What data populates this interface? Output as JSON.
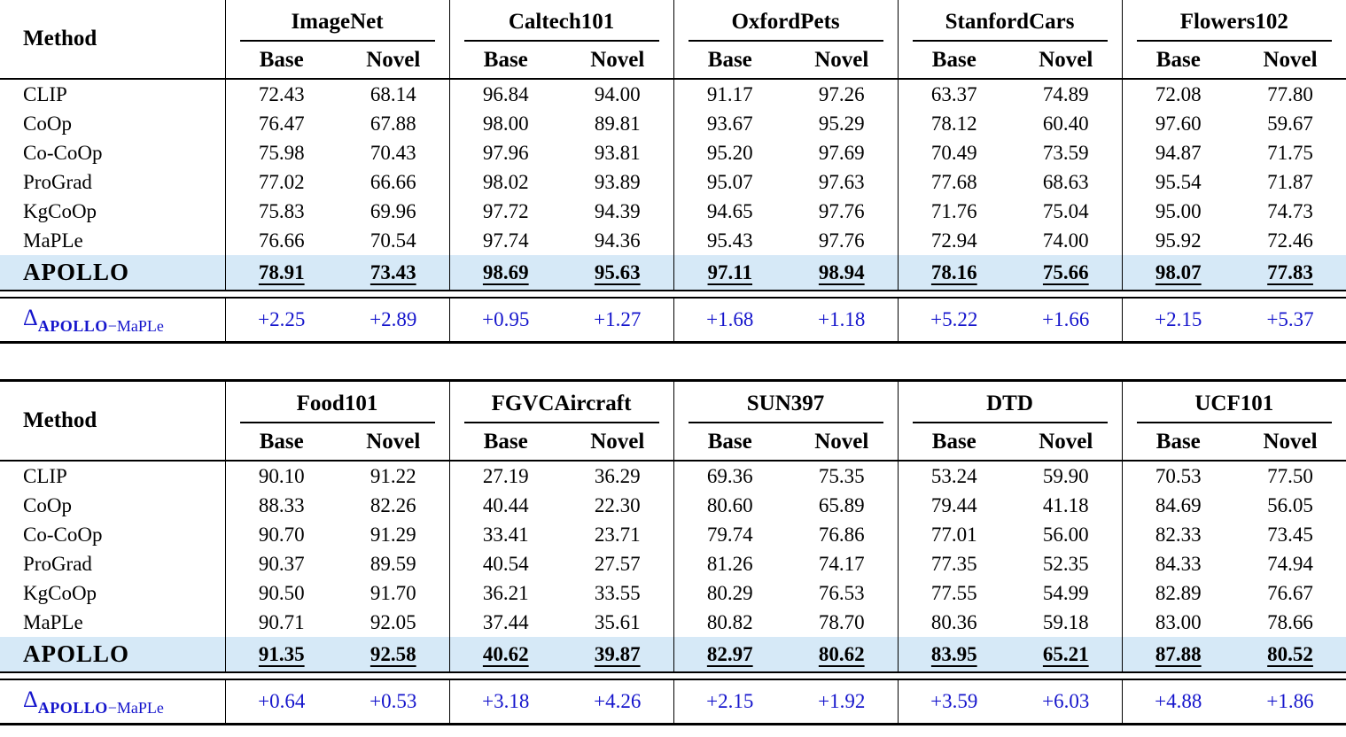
{
  "colors": {
    "delta_blue": "#1515cc",
    "highlight_row_bg": "#d6e9f7",
    "rule_black": "#000000"
  },
  "tables": [
    {
      "method_header": "Method",
      "col_headers": [
        "Base",
        "Novel"
      ],
      "datasets": [
        "ImageNet",
        "Caltech101",
        "OxfordPets",
        "StanfordCars",
        "Flowers102"
      ],
      "top_rule": false,
      "rows": [
        {
          "method": "CLIP",
          "values": [
            [
              "72.43",
              "68.14"
            ],
            [
              "96.84",
              "94.00"
            ],
            [
              "91.17",
              "97.26"
            ],
            [
              "63.37",
              "74.89"
            ],
            [
              "72.08",
              "77.80"
            ]
          ]
        },
        {
          "method": "CoOp",
          "values": [
            [
              "76.47",
              "67.88"
            ],
            [
              "98.00",
              "89.81"
            ],
            [
              "93.67",
              "95.29"
            ],
            [
              "78.12",
              "60.40"
            ],
            [
              "97.60",
              "59.67"
            ]
          ]
        },
        {
          "method": "Co-CoOp",
          "values": [
            [
              "75.98",
              "70.43"
            ],
            [
              "97.96",
              "93.81"
            ],
            [
              "95.20",
              "97.69"
            ],
            [
              "70.49",
              "73.59"
            ],
            [
              "94.87",
              "71.75"
            ]
          ]
        },
        {
          "method": "ProGrad",
          "values": [
            [
              "77.02",
              "66.66"
            ],
            [
              "98.02",
              "93.89"
            ],
            [
              "95.07",
              "97.63"
            ],
            [
              "77.68",
              "68.63"
            ],
            [
              "95.54",
              "71.87"
            ]
          ]
        },
        {
          "method": "KgCoOp",
          "values": [
            [
              "75.83",
              "69.96"
            ],
            [
              "97.72",
              "94.39"
            ],
            [
              "94.65",
              "97.76"
            ],
            [
              "71.76",
              "75.04"
            ],
            [
              "95.00",
              "74.73"
            ]
          ]
        },
        {
          "method": "MaPLe",
          "values": [
            [
              "76.66",
              "70.54"
            ],
            [
              "97.74",
              "94.36"
            ],
            [
              "95.43",
              "97.76"
            ],
            [
              "72.94",
              "74.00"
            ],
            [
              "95.92",
              "72.46"
            ]
          ]
        },
        {
          "method": "APOLLO",
          "highlight": true,
          "values": [
            [
              "78.91",
              "73.43"
            ],
            [
              "98.69",
              "95.63"
            ],
            [
              "97.11",
              "98.94"
            ],
            [
              "78.16",
              "75.66"
            ],
            [
              "98.07",
              "77.83"
            ]
          ]
        }
      ],
      "delta_row": {
        "symbol": "Δ",
        "sub_bold": "APOLLO",
        "sub_rest": "−MaPLe",
        "values": [
          [
            "+2.25",
            "+2.89"
          ],
          [
            "+0.95",
            "+1.27"
          ],
          [
            "+1.68",
            "+1.18"
          ],
          [
            "+5.22",
            "+1.66"
          ],
          [
            "+2.15",
            "+5.37"
          ]
        ]
      }
    },
    {
      "method_header": "Method",
      "col_headers": [
        "Base",
        "Novel"
      ],
      "datasets": [
        "Food101",
        "FGVCAircraft",
        "SUN397",
        "DTD",
        "UCF101"
      ],
      "top_rule": true,
      "rows": [
        {
          "method": "CLIP",
          "values": [
            [
              "90.10",
              "91.22"
            ],
            [
              "27.19",
              "36.29"
            ],
            [
              "69.36",
              "75.35"
            ],
            [
              "53.24",
              "59.90"
            ],
            [
              "70.53",
              "77.50"
            ]
          ]
        },
        {
          "method": "CoOp",
          "values": [
            [
              "88.33",
              "82.26"
            ],
            [
              "40.44",
              "22.30"
            ],
            [
              "80.60",
              "65.89"
            ],
            [
              "79.44",
              "41.18"
            ],
            [
              "84.69",
              "56.05"
            ]
          ]
        },
        {
          "method": "Co-CoOp",
          "values": [
            [
              "90.70",
              "91.29"
            ],
            [
              "33.41",
              "23.71"
            ],
            [
              "79.74",
              "76.86"
            ],
            [
              "77.01",
              "56.00"
            ],
            [
              "82.33",
              "73.45"
            ]
          ]
        },
        {
          "method": "ProGrad",
          "values": [
            [
              "90.37",
              "89.59"
            ],
            [
              "40.54",
              "27.57"
            ],
            [
              "81.26",
              "74.17"
            ],
            [
              "77.35",
              "52.35"
            ],
            [
              "84.33",
              "74.94"
            ]
          ]
        },
        {
          "method": "KgCoOp",
          "values": [
            [
              "90.50",
              "91.70"
            ],
            [
              "36.21",
              "33.55"
            ],
            [
              "80.29",
              "76.53"
            ],
            [
              "77.55",
              "54.99"
            ],
            [
              "82.89",
              "76.67"
            ]
          ]
        },
        {
          "method": "MaPLe",
          "values": [
            [
              "90.71",
              "92.05"
            ],
            [
              "37.44",
              "35.61"
            ],
            [
              "80.82",
              "78.70"
            ],
            [
              "80.36",
              "59.18"
            ],
            [
              "83.00",
              "78.66"
            ]
          ]
        },
        {
          "method": "APOLLO",
          "highlight": true,
          "values": [
            [
              "91.35",
              "92.58"
            ],
            [
              "40.62",
              "39.87"
            ],
            [
              "82.97",
              "80.62"
            ],
            [
              "83.95",
              "65.21"
            ],
            [
              "87.88",
              "80.52"
            ]
          ]
        }
      ],
      "delta_row": {
        "symbol": "Δ",
        "sub_bold": "APOLLO",
        "sub_rest": "−MaPLe",
        "values": [
          [
            "+0.64",
            "+0.53"
          ],
          [
            "+3.18",
            "+4.26"
          ],
          [
            "+2.15",
            "+1.92"
          ],
          [
            "+3.59",
            "+6.03"
          ],
          [
            "+4.88",
            "+1.86"
          ]
        ]
      }
    }
  ]
}
